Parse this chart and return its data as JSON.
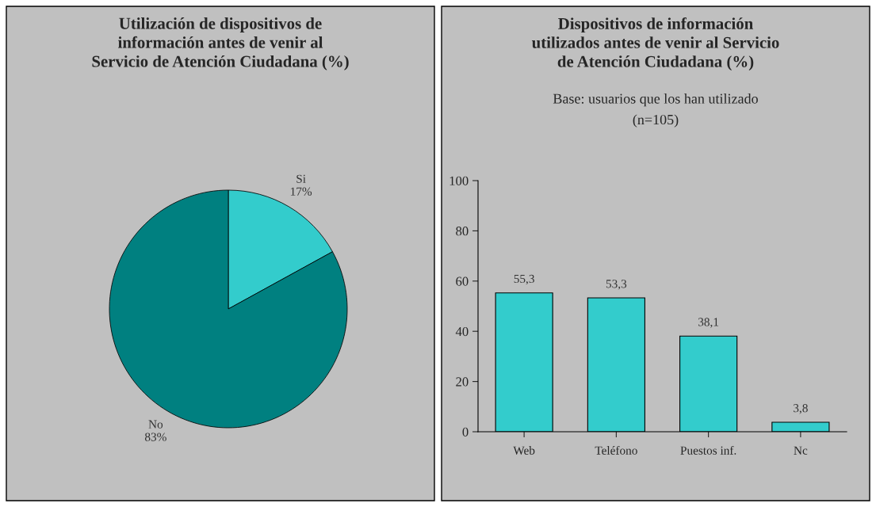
{
  "chart_data": [
    {
      "type": "pie",
      "title": "Utilización de dispositivos de\ninformación antes de venir al\nServicio de Atención Ciudadana (%)",
      "categories": [
        "Si",
        "No"
      ],
      "values": [
        17,
        83
      ],
      "value_labels": [
        "17%",
        "83%"
      ],
      "colors": [
        "#33cccc",
        "#008080"
      ]
    },
    {
      "type": "bar",
      "title": "Dispositivos de información\nutilizados antes de venir al Servicio\nde Atención Ciudadana (%)",
      "subtitle": "Base: usuarios que los han utilizado\n(n=105)",
      "categories": [
        "Web",
        "Teléfono",
        "Puestos inf.",
        "Nc"
      ],
      "values": [
        55.3,
        53.3,
        38.1,
        3.8
      ],
      "value_labels": [
        "55,3",
        "53,3",
        "38,1",
        "3,8"
      ],
      "color": "#33cccc",
      "ylim": [
        0,
        100
      ],
      "yticks": [
        0,
        20,
        40,
        60,
        80,
        100
      ],
      "grid": false
    }
  ]
}
